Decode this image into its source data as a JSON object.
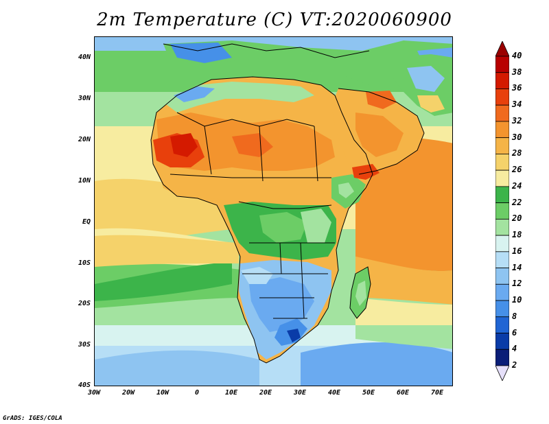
{
  "title": "2m Temperature (C) VT:2020060900",
  "credit": "GrADS: IGES/COLA",
  "axes": {
    "lat_labels": [
      "40N",
      "30N",
      "20N",
      "10N",
      "EQ",
      "10S",
      "20S",
      "30S",
      "40S"
    ],
    "lon_labels": [
      "30W",
      "20W",
      "10W",
      "0",
      "10E",
      "20E",
      "30E",
      "40E",
      "50E",
      "60E",
      "70E"
    ]
  },
  "colorbar": {
    "labels": [
      "40",
      "38",
      "36",
      "34",
      "32",
      "30",
      "28",
      "26",
      "24",
      "22",
      "20",
      "18",
      "16",
      "14",
      "12",
      "10",
      "8",
      "6",
      "4",
      "2"
    ],
    "colors": [
      "#9a0000",
      "#b80000",
      "#d41a00",
      "#e8400c",
      "#f06a1e",
      "#f3942e",
      "#f5b447",
      "#f5d26a",
      "#f7eca0",
      "#3cb44a",
      "#6ccd66",
      "#a3e3a0",
      "#d8f3f0",
      "#b6def6",
      "#8ec4f1",
      "#6aaaf0",
      "#4690e8",
      "#2065d4",
      "#0a3ca8",
      "#0a1e78",
      "#e6e0fa"
    ]
  }
}
